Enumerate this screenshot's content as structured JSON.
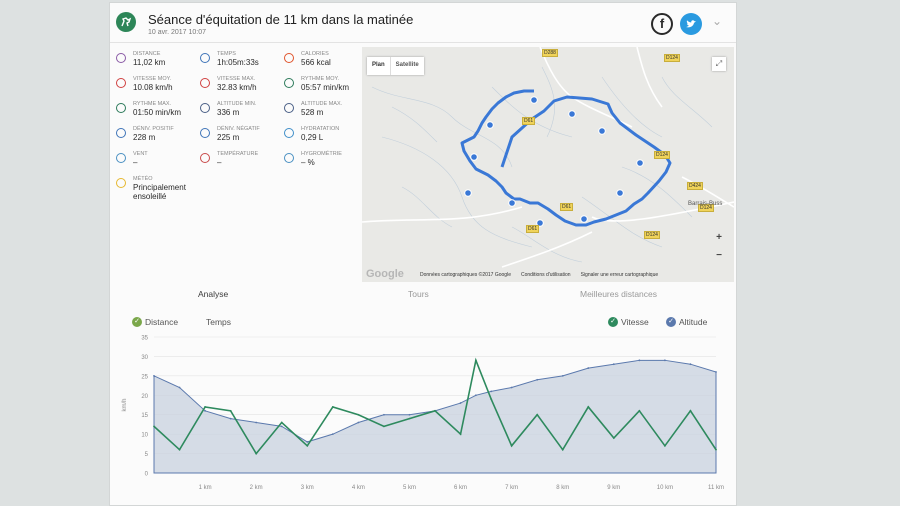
{
  "header": {
    "title": "Séance d'équitation de 11 km dans la matinée",
    "date": "10 avr. 2017 10:07",
    "facebook": "f",
    "chevron": "⌄"
  },
  "stats": [
    {
      "label": "DISTANCE",
      "value": "11,02 km",
      "icon": "distance-icon",
      "color": "#8a5aa6"
    },
    {
      "label": "TEMPS",
      "value": "1h:05m:33s",
      "icon": "timer-icon",
      "color": "#3f74b8"
    },
    {
      "label": "CALORIES",
      "value": "566 kcal",
      "icon": "flame-icon",
      "color": "#e0542c"
    },
    {
      "label": "VITESSE MOY.",
      "value": "10.08 km/h",
      "icon": "speed-avg-icon",
      "color": "#d04040"
    },
    {
      "label": "VITESSE MAX.",
      "value": "32.83 km/h",
      "icon": "speed-max-icon",
      "color": "#d04040"
    },
    {
      "label": "RYTHME MOY.",
      "value": "05:57 min/km",
      "icon": "pace-avg-icon",
      "color": "#2c7a5a"
    },
    {
      "label": "RYTHME MAX.",
      "value": "01:50 min/km",
      "icon": "pace-max-icon",
      "color": "#2c7a5a"
    },
    {
      "label": "ALTITUDE MIN.",
      "value": "336 m",
      "icon": "altitude-min-icon",
      "color": "#4a5f86"
    },
    {
      "label": "ALTITUDE MAX.",
      "value": "528 m",
      "icon": "altitude-max-icon",
      "color": "#4a5f86"
    },
    {
      "label": "DÉNIV. POSITIF",
      "value": "228 m",
      "icon": "ascent-icon",
      "color": "#3f74b8"
    },
    {
      "label": "DÉNIV. NÉGATIF",
      "value": "225 m",
      "icon": "descent-icon",
      "color": "#3f74b8"
    },
    {
      "label": "HYDRATATION",
      "value": "0,29 L",
      "icon": "water-drop-icon",
      "color": "#3f8ec8"
    },
    {
      "label": "VENT",
      "value": "–",
      "icon": "wind-icon",
      "color": "#4a90c2"
    },
    {
      "label": "TEMPÉRATURE",
      "value": "–",
      "icon": "thermometer-icon",
      "color": "#c84a4a"
    },
    {
      "label": "HYGROMÉTRIE",
      "value": "– %",
      "icon": "humidity-icon",
      "color": "#4a90c2"
    },
    {
      "label": "MÉTÉO",
      "value": "Principalement ensoleillé",
      "icon": "sun-icon",
      "color": "#e6b830"
    }
  ],
  "map": {
    "plan_label": "Plan",
    "satellite_label": "Satellite",
    "zoom_in": "+",
    "zoom_out": "−",
    "google": "Google",
    "footer_data": "Données cartographiques ©2017 Google",
    "footer_terms": "Conditions d'utilisation",
    "footer_report": "Signaler une erreur cartographique",
    "roads": [
      "D288",
      "D124",
      "D61",
      "D124",
      "D424",
      "D124",
      "D61",
      "D61",
      "D124"
    ],
    "place": "Barrais-Buss",
    "route_color": "#3a78d6"
  },
  "tabs": {
    "analyse": "Analyse",
    "tours": "Tours",
    "best": "Meilleures distances"
  },
  "chart_legend": {
    "distance": "Distance",
    "temps": "Temps",
    "vitesse": "Vitesse",
    "altitude": "Altitude"
  },
  "chart_data": {
    "type": "line",
    "ylabel": "km/h",
    "ylim": [
      0,
      35
    ],
    "yticks": [
      "0",
      "5",
      "10",
      "15",
      "20",
      "25",
      "30",
      "35"
    ],
    "x": [
      0,
      0.5,
      1,
      1.5,
      2,
      2.5,
      3,
      3.5,
      4,
      4.5,
      5,
      5.5,
      6,
      6.3,
      6.6,
      7,
      7.5,
      8,
      8.5,
      9,
      9.5,
      10,
      10.5,
      11
    ],
    "xticks": [
      "1 km",
      "2 km",
      "3 km",
      "4 km",
      "5 km",
      "6 km",
      "7 km",
      "8 km",
      "9 km",
      "10 km",
      "11 km"
    ],
    "series": [
      {
        "name": "Vitesse",
        "color": "#2e8a5e",
        "values": [
          12,
          6,
          17,
          16,
          5,
          13,
          7,
          17,
          15,
          12,
          14,
          16,
          10,
          29,
          19,
          7,
          15,
          6,
          17,
          9,
          16,
          7,
          16,
          6
        ]
      },
      {
        "name": "Altitude",
        "color": "#5b79ad",
        "values": [
          25,
          22,
          16,
          14,
          13,
          12,
          8,
          10,
          13,
          15,
          15,
          16,
          18,
          20,
          21,
          22,
          24,
          25,
          27,
          28,
          29,
          29,
          28,
          26
        ]
      }
    ]
  }
}
